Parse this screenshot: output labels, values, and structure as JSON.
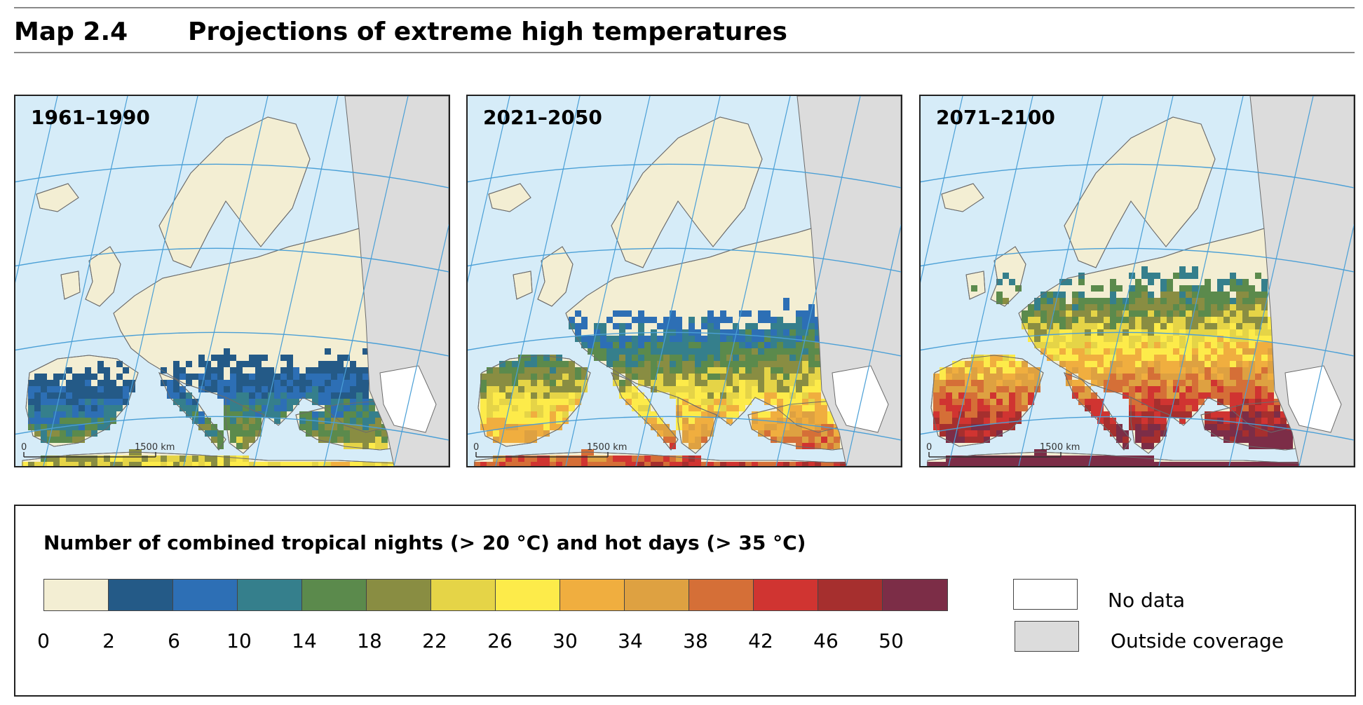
{
  "header": {
    "map_label": "Map 2.4",
    "map_title": "Projections of extreme high temperatures"
  },
  "panels": [
    {
      "period": "1961–1990",
      "scale_start": "0",
      "scale_end": "1500 km",
      "severity": 0
    },
    {
      "period": "2021–2050",
      "scale_start": "0",
      "scale_end": "1500 km",
      "severity": 1
    },
    {
      "period": "2071–2100",
      "scale_start": "0",
      "scale_end": "1500 km",
      "severity": 2
    }
  ],
  "colors": {
    "sea": "#d6ecf8",
    "land_low": "#f3eed3",
    "outside": "#dcdcdc",
    "no_data": "#ffffff",
    "graticule": "#4a9fd6",
    "border": "#6b6b6b"
  },
  "legend": {
    "title": "Number of combined tropical nights (> 20 °C) and hot days (> 35 °C)",
    "ramp_colors": [
      "#f3eed3",
      "#245a87",
      "#2d6fb5",
      "#357f8c",
      "#5b8a4c",
      "#898d42",
      "#e5d447",
      "#fdeb4a",
      "#f0ae3f",
      "#dea141",
      "#d56f37",
      "#d03431",
      "#a62f2e",
      "#7c2d47"
    ],
    "ticks": [
      "0",
      "2",
      "6",
      "10",
      "14",
      "18",
      "22",
      "26",
      "30",
      "34",
      "38",
      "42",
      "46",
      "50"
    ],
    "no_data_label": "No data",
    "outside_label": "Outside coverage"
  }
}
